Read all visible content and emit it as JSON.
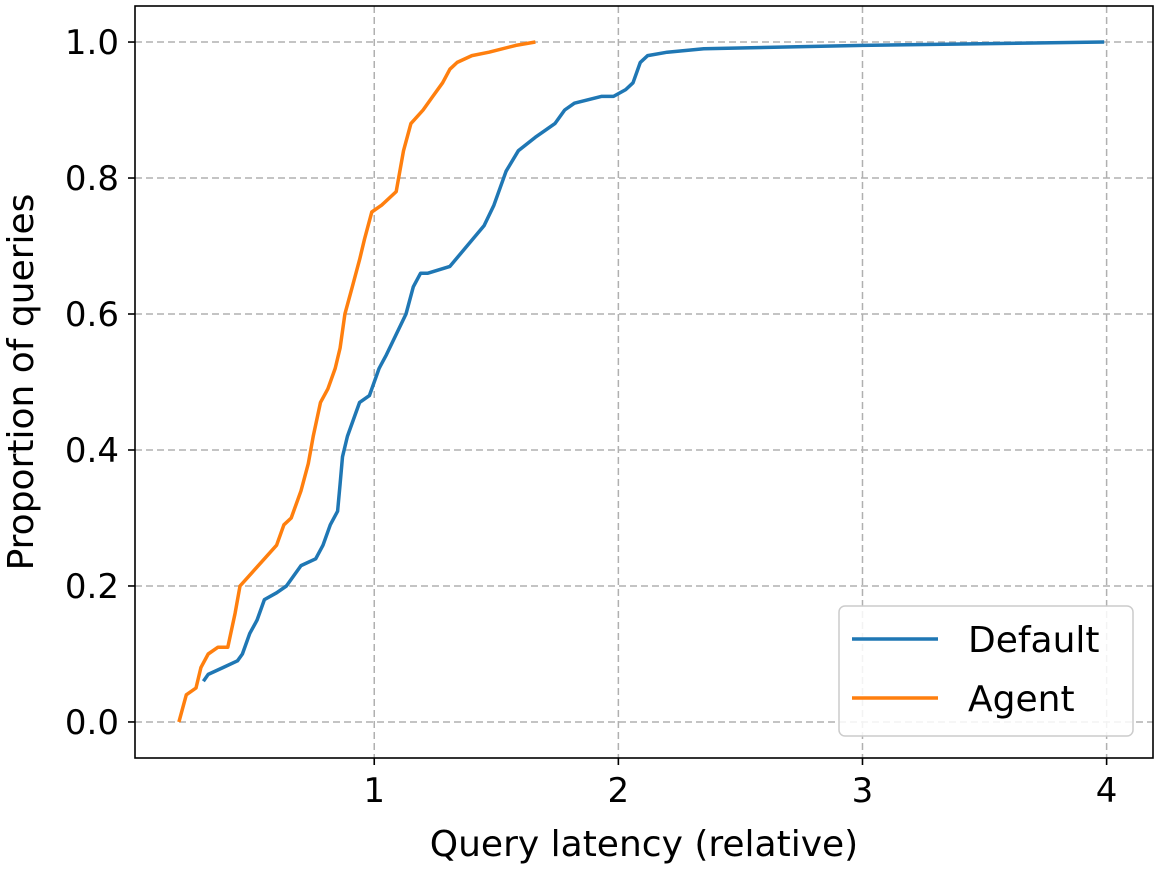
{
  "chart_data": {
    "type": "line",
    "title": "",
    "xlabel": "Query latency (relative)",
    "ylabel": "Proportion of queries",
    "xlim": [
      0.02,
      4.19
    ],
    "ylim": [
      -0.053,
      1.053
    ],
    "xticks": [
      1,
      2,
      3,
      4
    ],
    "xtick_labels": [
      "1",
      "2",
      "3",
      "4"
    ],
    "yticks": [
      0.0,
      0.2,
      0.4,
      0.6,
      0.8,
      1.0
    ],
    "ytick_labels": [
      "0.0",
      "0.2",
      "0.4",
      "0.6",
      "0.8",
      "1.0"
    ],
    "grid": true,
    "legend_position": "lower-right",
    "series": [
      {
        "name": "Default",
        "color": "#1f77b4",
        "points": [
          [
            0.3,
            0.06
          ],
          [
            0.32,
            0.07
          ],
          [
            0.38,
            0.08
          ],
          [
            0.44,
            0.09
          ],
          [
            0.46,
            0.1
          ],
          [
            0.49,
            0.13
          ],
          [
            0.52,
            0.15
          ],
          [
            0.55,
            0.18
          ],
          [
            0.6,
            0.19
          ],
          [
            0.64,
            0.2
          ],
          [
            0.7,
            0.23
          ],
          [
            0.76,
            0.24
          ],
          [
            0.79,
            0.26
          ],
          [
            0.82,
            0.29
          ],
          [
            0.85,
            0.31
          ],
          [
            0.86,
            0.35
          ],
          [
            0.87,
            0.39
          ],
          [
            0.89,
            0.42
          ],
          [
            0.92,
            0.45
          ],
          [
            0.94,
            0.47
          ],
          [
            0.98,
            0.48
          ],
          [
            1.02,
            0.52
          ],
          [
            1.05,
            0.54
          ],
          [
            1.09,
            0.57
          ],
          [
            1.13,
            0.6
          ],
          [
            1.16,
            0.64
          ],
          [
            1.19,
            0.66
          ],
          [
            1.22,
            0.66
          ],
          [
            1.31,
            0.67
          ],
          [
            1.38,
            0.7
          ],
          [
            1.45,
            0.73
          ],
          [
            1.49,
            0.76
          ],
          [
            1.54,
            0.81
          ],
          [
            1.59,
            0.84
          ],
          [
            1.66,
            0.86
          ],
          [
            1.7,
            0.87
          ],
          [
            1.74,
            0.88
          ],
          [
            1.78,
            0.9
          ],
          [
            1.82,
            0.91
          ],
          [
            1.93,
            0.92
          ],
          [
            1.98,
            0.92
          ],
          [
            2.03,
            0.93
          ],
          [
            2.06,
            0.94
          ],
          [
            2.09,
            0.97
          ],
          [
            2.12,
            0.98
          ],
          [
            2.2,
            0.985
          ],
          [
            2.35,
            0.99
          ],
          [
            3.0,
            0.995
          ],
          [
            3.99,
            1.0
          ]
        ]
      },
      {
        "name": "Agent",
        "color": "#ff7f0e",
        "points": [
          [
            0.2,
            0.0
          ],
          [
            0.23,
            0.04
          ],
          [
            0.27,
            0.05
          ],
          [
            0.29,
            0.08
          ],
          [
            0.32,
            0.1
          ],
          [
            0.36,
            0.11
          ],
          [
            0.4,
            0.11
          ],
          [
            0.43,
            0.16
          ],
          [
            0.45,
            0.2
          ],
          [
            0.5,
            0.22
          ],
          [
            0.55,
            0.24
          ],
          [
            0.6,
            0.26
          ],
          [
            0.63,
            0.29
          ],
          [
            0.66,
            0.3
          ],
          [
            0.7,
            0.34
          ],
          [
            0.73,
            0.38
          ],
          [
            0.75,
            0.42
          ],
          [
            0.78,
            0.47
          ],
          [
            0.81,
            0.49
          ],
          [
            0.84,
            0.52
          ],
          [
            0.86,
            0.55
          ],
          [
            0.88,
            0.6
          ],
          [
            0.91,
            0.64
          ],
          [
            0.94,
            0.68
          ],
          [
            0.96,
            0.71
          ],
          [
            0.99,
            0.75
          ],
          [
            1.03,
            0.76
          ],
          [
            1.09,
            0.78
          ],
          [
            1.12,
            0.84
          ],
          [
            1.15,
            0.88
          ],
          [
            1.2,
            0.9
          ],
          [
            1.24,
            0.92
          ],
          [
            1.28,
            0.94
          ],
          [
            1.31,
            0.96
          ],
          [
            1.34,
            0.97
          ],
          [
            1.4,
            0.98
          ],
          [
            1.47,
            0.985
          ],
          [
            1.58,
            0.995
          ],
          [
            1.66,
            1.0
          ]
        ]
      }
    ]
  }
}
